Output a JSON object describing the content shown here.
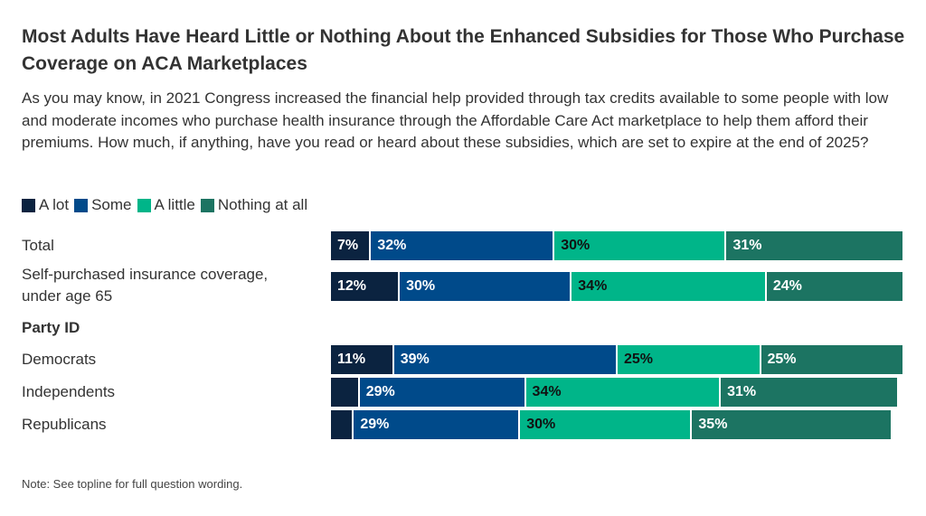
{
  "title": "Most Adults Have Heard Little or Nothing About the Enhanced Subsidies for Those Who Purchase Coverage on ACA Marketplaces",
  "subtitle": "As you may know, in 2021 Congress increased the financial help provided through tax credits available to some people with low and moderate incomes who purchase health insurance through the Affordable Care Act marketplace to help them afford their premiums. How much, if anything, have you read or heard about these subsidies, which are set to expire at the end of 2025?",
  "note": "Note: See topline for full question wording.",
  "chart_data": {
    "type": "bar",
    "orientation": "horizontal",
    "stacked": true,
    "title": "Most Adults Have Heard Little or Nothing About the Enhanced Subsidies for Those Who Purchase Coverage on ACA Marketplaces",
    "legend": [
      "A lot",
      "Some",
      "A little",
      "Nothing at all"
    ],
    "legend_position": "top-left",
    "colors": [
      "#0b2340",
      "#004a8a",
      "#00b589",
      "#1c7462"
    ],
    "label_colors": [
      "#ffffff",
      "#ffffff",
      "#111111",
      "#ffffff"
    ],
    "categories": [
      "Total",
      "Self-purchased insurance coverage, under age 65",
      "Democrats",
      "Independents",
      "Republicans"
    ],
    "group_headers": [
      {
        "label": "Party ID",
        "before": "Democrats"
      }
    ],
    "series": [
      {
        "name": "A lot",
        "values": [
          7,
          12,
          11,
          5,
          4
        ],
        "show_label": [
          true,
          true,
          true,
          false,
          false
        ]
      },
      {
        "name": "Some",
        "values": [
          32,
          30,
          39,
          29,
          29
        ],
        "show_label": [
          true,
          true,
          true,
          true,
          true
        ]
      },
      {
        "name": "A little",
        "values": [
          30,
          34,
          25,
          34,
          30
        ],
        "show_label": [
          true,
          true,
          true,
          true,
          true
        ]
      },
      {
        "name": "Nothing at all",
        "values": [
          31,
          24,
          25,
          31,
          35
        ],
        "show_label": [
          true,
          true,
          true,
          true,
          true
        ]
      }
    ],
    "xlim": [
      0,
      100
    ],
    "grid": false
  }
}
